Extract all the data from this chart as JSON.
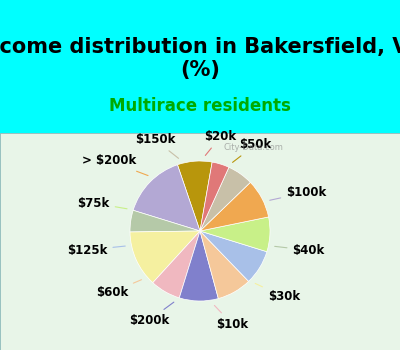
{
  "title": "Income distribution in Bakersfield, VT\n(%)",
  "subtitle": "Multirace residents",
  "labels": [
    "$50k",
    "$100k",
    "$40k",
    "$30k",
    "$10k",
    "$200k",
    "$60k",
    "$125k",
    "$75k",
    "> $200k",
    "$150k",
    "$20k"
  ],
  "values": [
    8,
    15,
    5,
    13,
    7,
    9,
    8,
    8,
    8,
    9,
    6,
    4
  ],
  "colors": [
    "#b8960c",
    "#b3a8d4",
    "#b5c9a8",
    "#f5f0a0",
    "#f0b8c0",
    "#8080cc",
    "#f5c89a",
    "#a8c0e8",
    "#c8f088",
    "#f0a850",
    "#c8c0a8",
    "#e07878"
  ],
  "background_top": "#00ffff",
  "chart_bg": "#e8f5e8",
  "watermark": "City-Data.com",
  "title_fontsize": 15,
  "subtitle_fontsize": 12,
  "label_fontsize": 8.5,
  "startangle": 80
}
